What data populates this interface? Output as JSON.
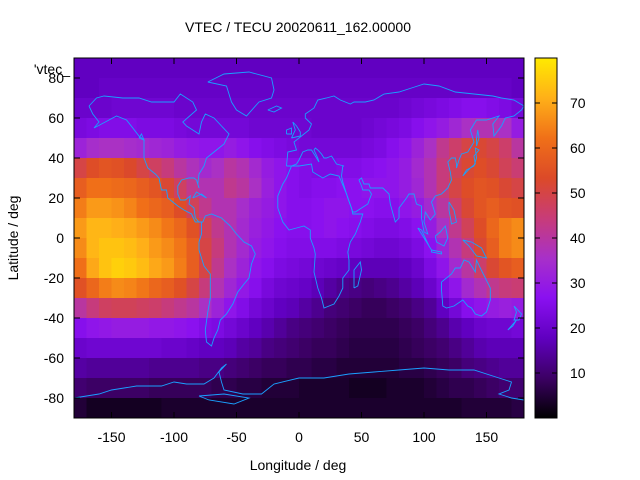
{
  "chart_data": {
    "type": "heatmap",
    "title": "VTEC / TECU 20020611_162.00000",
    "xlabel": "Longitude / deg",
    "ylabel": "Latitude / deg",
    "legend_key": "'vtec_",
    "xlim": [
      -180,
      180
    ],
    "ylim": [
      -90,
      90
    ],
    "x_ticks": [
      -150,
      -100,
      -50,
      0,
      50,
      100,
      150
    ],
    "y_ticks": [
      -80,
      -60,
      -40,
      -20,
      0,
      20,
      40,
      60,
      80
    ],
    "colorbar": {
      "range": [
        0,
        80
      ],
      "ticks": [
        10,
        20,
        30,
        40,
        50,
        60,
        70
      ]
    },
    "colormap": [
      "#000000",
      "#3c0064",
      "#6000c0",
      "#8a10f0",
      "#a830c8",
      "#c83c78",
      "#dc4a28",
      "#f07018",
      "#ffb018",
      "#ffea00"
    ],
    "coastline_color": "#1aa0ff",
    "lat_cells": [
      85,
      75,
      65,
      55,
      45,
      35,
      25,
      15,
      5,
      -5,
      -15,
      -25,
      -35,
      -45,
      -55,
      -65,
      -75,
      -85
    ],
    "lon_cells": [
      -175,
      -165,
      -155,
      -145,
      -135,
      -125,
      -115,
      -105,
      -95,
      -85,
      -75,
      -65,
      -55,
      -45,
      -35,
      -25,
      -15,
      -5,
      5,
      15,
      25,
      35,
      45,
      55,
      65,
      75,
      85,
      95,
      105,
      115,
      125,
      135,
      145,
      155,
      165,
      175
    ],
    "vtec": [
      [
        18,
        18,
        18,
        18,
        18,
        18,
        18,
        18,
        18,
        18,
        18,
        18,
        18,
        18,
        18,
        18,
        18,
        18,
        18,
        18,
        18,
        18,
        18,
        18,
        18,
        18,
        18,
        18,
        18,
        18,
        18,
        18,
        18,
        18,
        18,
        18
      ],
      [
        18,
        18,
        19,
        19,
        19,
        19,
        19,
        19,
        19,
        19,
        19,
        19,
        19,
        19,
        19,
        19,
        19,
        19,
        19,
        19,
        19,
        19,
        19,
        19,
        19,
        19,
        19,
        19,
        19,
        19,
        19,
        19,
        19,
        19,
        19,
        18
      ],
      [
        20,
        20,
        20,
        21,
        21,
        21,
        21,
        21,
        20,
        20,
        20,
        20,
        20,
        20,
        20,
        20,
        20,
        20,
        20,
        20,
        20,
        20,
        20,
        20,
        20,
        20,
        21,
        22,
        23,
        24,
        25,
        26,
        26,
        25,
        24,
        22
      ],
      [
        23,
        24,
        25,
        25,
        25,
        24,
        24,
        24,
        23,
        22,
        22,
        22,
        22,
        22,
        21,
        21,
        21,
        21,
        21,
        20,
        20,
        20,
        20,
        21,
        22,
        23,
        24,
        26,
        28,
        30,
        33,
        36,
        38,
        38,
        36,
        30
      ],
      [
        32,
        35,
        36,
        36,
        35,
        34,
        33,
        32,
        30,
        29,
        28,
        28,
        30,
        28,
        26,
        25,
        24,
        23,
        22,
        22,
        22,
        22,
        22,
        23,
        24,
        26,
        28,
        32,
        36,
        42,
        46,
        50,
        52,
        50,
        46,
        40
      ],
      [
        50,
        54,
        56,
        55,
        53,
        50,
        47,
        44,
        40,
        37,
        34,
        36,
        40,
        38,
        34,
        30,
        28,
        26,
        25,
        24,
        24,
        25,
        25,
        26,
        27,
        28,
        30,
        34,
        38,
        44,
        48,
        52,
        54,
        52,
        48,
        45
      ],
      [
        58,
        62,
        62,
        61,
        60,
        58,
        56,
        52,
        47,
        42,
        38,
        38,
        42,
        40,
        36,
        31,
        28,
        26,
        25,
        26,
        26,
        27,
        27,
        28,
        28,
        28,
        30,
        33,
        38,
        44,
        50,
        54,
        56,
        55,
        52,
        50
      ],
      [
        64,
        68,
        68,
        67,
        65,
        62,
        60,
        58,
        54,
        48,
        42,
        38,
        38,
        35,
        32,
        30,
        28,
        26,
        26,
        27,
        28,
        28,
        27,
        27,
        26,
        26,
        28,
        30,
        34,
        40,
        46,
        52,
        56,
        58,
        56,
        55
      ],
      [
        68,
        72,
        72,
        71,
        70,
        68,
        66,
        63,
        60,
        55,
        48,
        42,
        38,
        34,
        31,
        29,
        27,
        26,
        26,
        27,
        28,
        27,
        26,
        25,
        24,
        24,
        25,
        27,
        30,
        36,
        42,
        48,
        54,
        60,
        64,
        66
      ],
      [
        66,
        72,
        74,
        74,
        73,
        71,
        68,
        66,
        63,
        58,
        50,
        44,
        38,
        34,
        30,
        28,
        26,
        25,
        25,
        25,
        25,
        24,
        23,
        22,
        21,
        21,
        22,
        24,
        27,
        32,
        38,
        44,
        52,
        58,
        64,
        66
      ],
      [
        62,
        70,
        74,
        76,
        75,
        73,
        70,
        68,
        64,
        58,
        50,
        42,
        36,
        32,
        28,
        26,
        24,
        23,
        22,
        21,
        20,
        19,
        18,
        17,
        17,
        17,
        18,
        20,
        24,
        28,
        34,
        40,
        46,
        52,
        56,
        58
      ],
      [
        55,
        60,
        64,
        66,
        65,
        63,
        60,
        58,
        55,
        50,
        44,
        38,
        33,
        29,
        26,
        23,
        21,
        20,
        19,
        17,
        15,
        13,
        12,
        11,
        12,
        13,
        15,
        17,
        20,
        24,
        28,
        34,
        38,
        42,
        44,
        45
      ],
      [
        40,
        44,
        47,
        48,
        48,
        47,
        46,
        44,
        42,
        40,
        36,
        32,
        28,
        25,
        22,
        20,
        18,
        17,
        15,
        13,
        11,
        10,
        9,
        8,
        8,
        9,
        10,
        12,
        14,
        18,
        22,
        26,
        28,
        30,
        31,
        30
      ],
      [
        26,
        28,
        29,
        30,
        30,
        30,
        29,
        29,
        28,
        27,
        25,
        24,
        22,
        20,
        18,
        16,
        14,
        12,
        11,
        10,
        9,
        8,
        7,
        7,
        7,
        7,
        8,
        9,
        11,
        13,
        16,
        18,
        20,
        21,
        21,
        22
      ],
      [
        20,
        21,
        21,
        21,
        21,
        21,
        21,
        20,
        20,
        19,
        18,
        18,
        17,
        15,
        14,
        12,
        11,
        10,
        9,
        8,
        8,
        7,
        6,
        6,
        6,
        6,
        7,
        8,
        9,
        10,
        12,
        14,
        16,
        17,
        17,
        17
      ],
      [
        15,
        14,
        14,
        14,
        14,
        14,
        13,
        13,
        13,
        13,
        12,
        12,
        11,
        10,
        9,
        8,
        8,
        7,
        7,
        6,
        6,
        5,
        5,
        5,
        5,
        5,
        6,
        6,
        7,
        8,
        9,
        11,
        12,
        13,
        14,
        14
      ],
      [
        10,
        9,
        9,
        9,
        9,
        9,
        8,
        8,
        8,
        8,
        8,
        7,
        7,
        6,
        6,
        5,
        5,
        5,
        4,
        4,
        4,
        4,
        3,
        3,
        3,
        4,
        4,
        4,
        5,
        6,
        7,
        7,
        8,
        9,
        10,
        10
      ],
      [
        5,
        3,
        3,
        3,
        3,
        3,
        3,
        4,
        4,
        4,
        4,
        4,
        4,
        4,
        4,
        4,
        4,
        4,
        4,
        4,
        4,
        4,
        4,
        4,
        4,
        4,
        4,
        4,
        4,
        4,
        4,
        5,
        5,
        5,
        5,
        6
      ]
    ]
  }
}
